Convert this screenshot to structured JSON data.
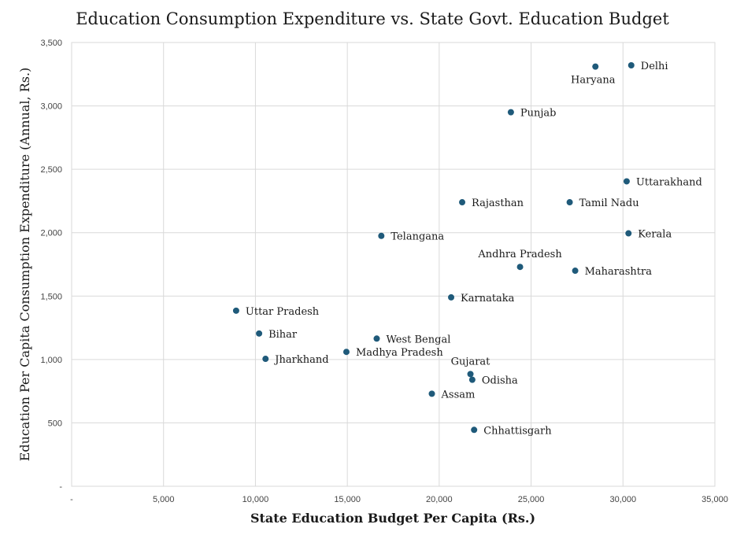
{
  "chart_data": {
    "type": "scatter",
    "title": "Education Consumption Expenditure vs. State Govt. Education Budget",
    "xlabel": "State Education Budget Per Capita (Rs.)",
    "ylabel": "Education Per Capita Consumption Expenditure (Annual, Rs.)",
    "xlim": [
      0,
      35000
    ],
    "ylim": [
      0,
      3500
    ],
    "grid": true,
    "marker_color": "#1f5a7a",
    "x_ticks": [
      {
        "value": 0,
        "label": "-"
      },
      {
        "value": 5000,
        "label": "5,000"
      },
      {
        "value": 10000,
        "label": "10,000"
      },
      {
        "value": 15000,
        "label": "15,000"
      },
      {
        "value": 20000,
        "label": "20,000"
      },
      {
        "value": 25000,
        "label": "25,000"
      },
      {
        "value": 30000,
        "label": "30,000"
      },
      {
        "value": 35000,
        "label": "35,000"
      }
    ],
    "y_ticks": [
      {
        "value": 0,
        "label": "-"
      },
      {
        "value": 500,
        "label": "500"
      },
      {
        "value": 1000,
        "label": "1,000"
      },
      {
        "value": 1500,
        "label": "1,500"
      },
      {
        "value": 2000,
        "label": "2,000"
      },
      {
        "value": 2500,
        "label": "2,500"
      },
      {
        "value": 3000,
        "label": "3,000"
      },
      {
        "value": 3500,
        "label": "3,500"
      }
    ],
    "points": [
      {
        "label": "Delhi",
        "x": 30450,
        "y": 3320,
        "label_pos": "right"
      },
      {
        "label": "Haryana",
        "x": 28500,
        "y": 3310,
        "label_pos": "below"
      },
      {
        "label": "Punjab",
        "x": 23900,
        "y": 2950,
        "label_pos": "right"
      },
      {
        "label": "Uttarakhand",
        "x": 30200,
        "y": 2405,
        "label_pos": "right"
      },
      {
        "label": "Rajasthan",
        "x": 21250,
        "y": 2240,
        "label_pos": "right"
      },
      {
        "label": "Tamil Nadu",
        "x": 27100,
        "y": 2240,
        "label_pos": "right"
      },
      {
        "label": "Kerala",
        "x": 30300,
        "y": 1995,
        "label_pos": "right"
      },
      {
        "label": "Telangana",
        "x": 16850,
        "y": 1975,
        "label_pos": "right"
      },
      {
        "label": "Andhra Pradesh",
        "x": 24400,
        "y": 1730,
        "label_pos": "above"
      },
      {
        "label": "Maharashtra",
        "x": 27400,
        "y": 1700,
        "label_pos": "right"
      },
      {
        "label": "Karnataka",
        "x": 20650,
        "y": 1490,
        "label_pos": "right"
      },
      {
        "label": "Uttar Pradesh",
        "x": 8950,
        "y": 1385,
        "label_pos": "right"
      },
      {
        "label": "Bihar",
        "x": 10200,
        "y": 1205,
        "label_pos": "right"
      },
      {
        "label": "West Bengal",
        "x": 16600,
        "y": 1165,
        "label_pos": "right"
      },
      {
        "label": "Madhya Pradesh",
        "x": 14950,
        "y": 1060,
        "label_pos": "right"
      },
      {
        "label": "Jharkhand",
        "x": 10550,
        "y": 1005,
        "label_pos": "right"
      },
      {
        "label": "Gujarat",
        "x": 21700,
        "y": 885,
        "label_pos": "above"
      },
      {
        "label": "Odisha",
        "x": 21800,
        "y": 840,
        "label_pos": "right"
      },
      {
        "label": "Assam",
        "x": 19600,
        "y": 730,
        "label_pos": "right"
      },
      {
        "label": "Chhattisgarh",
        "x": 21900,
        "y": 445,
        "label_pos": "right"
      }
    ]
  }
}
